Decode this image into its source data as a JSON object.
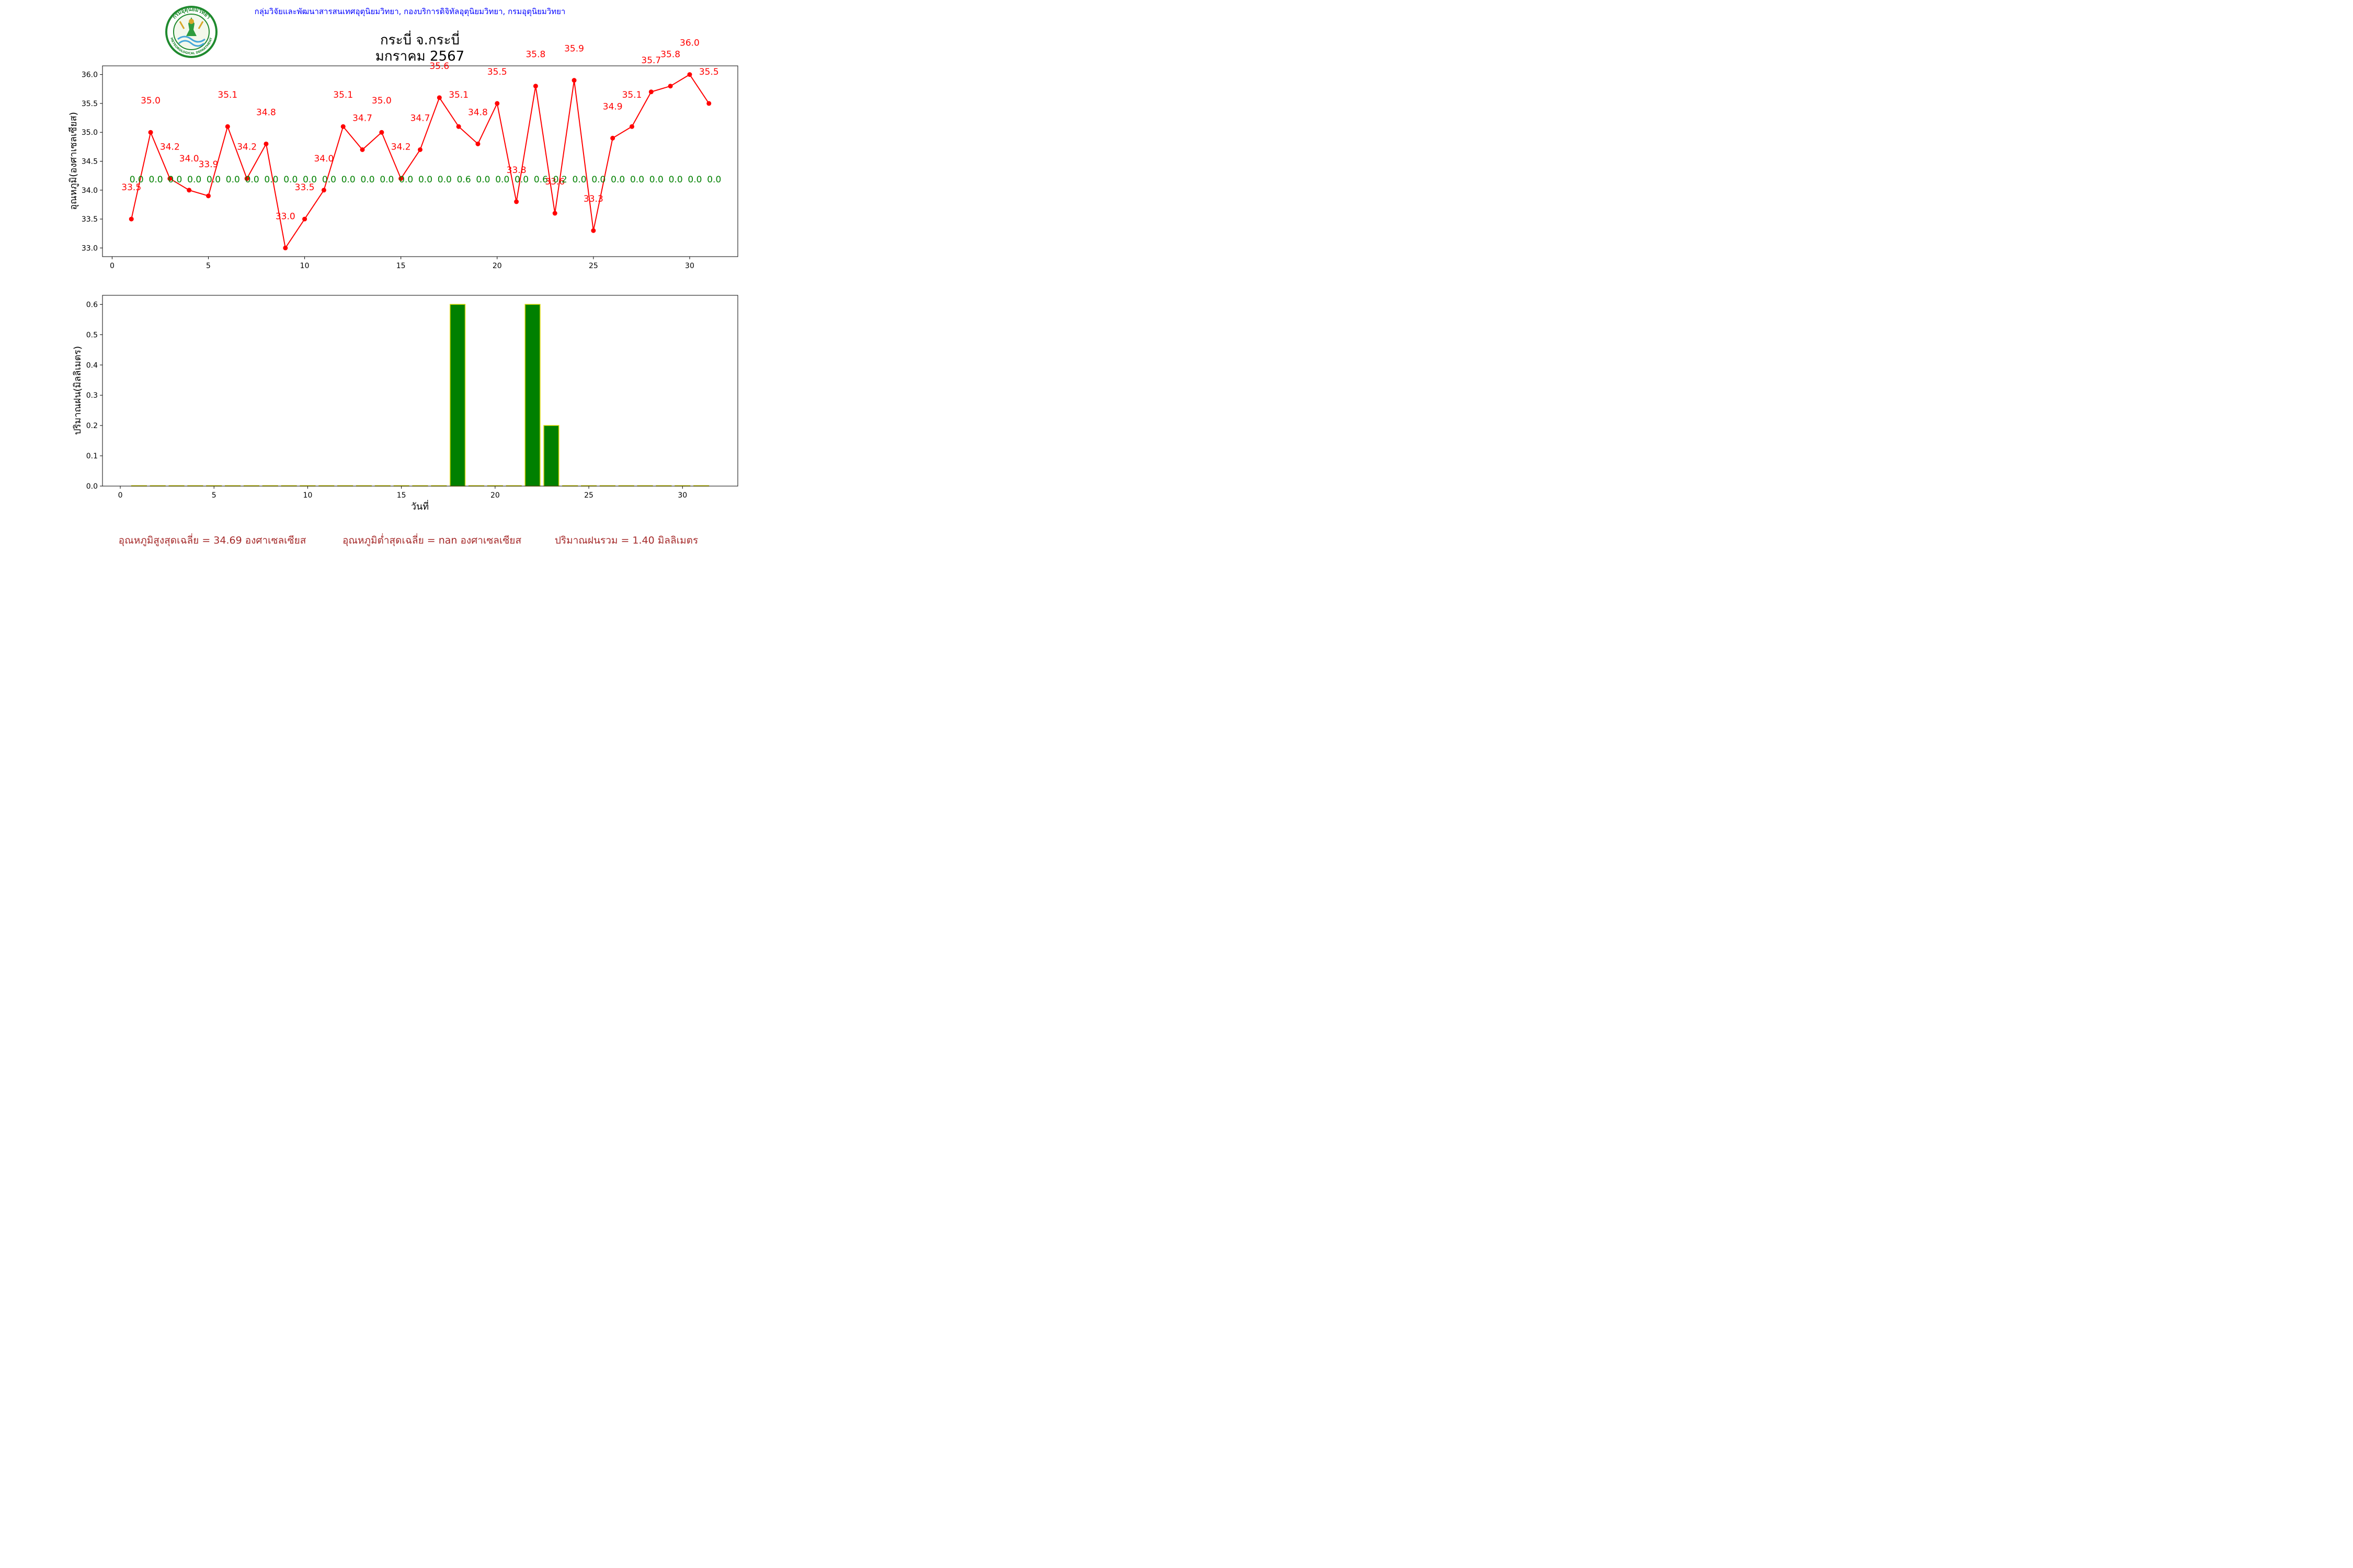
{
  "header": {
    "org_line": "กลุ่มวิจัยและพัฒนาสารสนเทศอุตุนิยมวิทยา, กองบริการดิจิทัลอุตุนิยมวิทยา, กรมอุตุนิยมวิทยา",
    "logo_text_top": "กรมอุตุนิยมวิทยา",
    "logo_text_bottom": "METEOROLOGICAL DEPARTMENT",
    "title_line1": "กระบี่ จ.กระบี่",
    "title_line2": "มกราคม 2567"
  },
  "colors": {
    "temperature": "#ff0000",
    "rain_label": "#008000",
    "bar_fill": "#008000",
    "bar_edge": "#d4d400",
    "header_text": "#0000ff",
    "footer_text": "#a52a2a"
  },
  "chart_data": [
    {
      "type": "line",
      "ylabel": "อุณหภูมิ(องศาเซลเซียส)",
      "x": [
        1,
        2,
        3,
        4,
        5,
        6,
        7,
        8,
        9,
        10,
        11,
        12,
        13,
        14,
        15,
        16,
        17,
        18,
        19,
        20,
        21,
        22,
        23,
        24,
        25,
        26,
        27,
        28,
        29,
        30,
        31
      ],
      "values": [
        33.5,
        35.0,
        34.2,
        34.0,
        33.9,
        35.1,
        34.2,
        34.8,
        33.0,
        33.5,
        34.0,
        35.1,
        34.7,
        35.0,
        34.2,
        34.7,
        35.6,
        35.1,
        34.8,
        35.5,
        33.8,
        35.8,
        33.6,
        35.9,
        33.3,
        34.9,
        35.1,
        35.7,
        35.8,
        36.0,
        35.5
      ],
      "value_labels": [
        "33.5",
        "35.0",
        "34.2",
        "34.0",
        "33.9",
        "35.1",
        "34.2",
        "34.8",
        "33.0",
        "33.5",
        "34.0",
        "35.1",
        "34.7",
        "35.0",
        "34.2",
        "34.7",
        "35.6",
        "35.1",
        "34.8",
        "35.5",
        "33.8",
        "35.8",
        "33.6",
        "35.9",
        "33.3",
        "34.9",
        "35.1",
        "35.7",
        "35.8",
        "36.0",
        "35.5"
      ],
      "rain_labels": [
        "0.0",
        "0.0",
        "0.0",
        "0.0",
        "0.0",
        "0.0",
        "0.0",
        "0.0",
        "0.0",
        "0.0",
        "0.0",
        "0.0",
        "0.0",
        "0.0",
        "0.0",
        "0.0",
        "0.0",
        "0.6",
        "0.0",
        "0.0",
        "0.0",
        "0.6",
        "0.2",
        "0.0",
        "0.0",
        "0.0",
        "0.0",
        "0.0",
        "0.0",
        "0.0",
        "0.0"
      ],
      "xlim": [
        -0.5,
        32.5
      ],
      "ylim": [
        32.85,
        36.15
      ],
      "xticks": [
        "0",
        "5",
        "10",
        "15",
        "20",
        "25",
        "30"
      ],
      "yticks": [
        "33.0",
        "33.5",
        "34.0",
        "34.5",
        "35.0",
        "35.5",
        "36.0"
      ]
    },
    {
      "type": "bar",
      "xlabel": "วันที่",
      "ylabel": "ปริมาณฝน(มิลลิเมตร)",
      "x": [
        1,
        2,
        3,
        4,
        5,
        6,
        7,
        8,
        9,
        10,
        11,
        12,
        13,
        14,
        15,
        16,
        17,
        18,
        19,
        20,
        21,
        22,
        23,
        24,
        25,
        26,
        27,
        28,
        29,
        30,
        31
      ],
      "values": [
        0,
        0,
        0,
        0,
        0,
        0,
        0,
        0,
        0,
        0,
        0,
        0,
        0,
        0,
        0,
        0,
        0,
        0.6,
        0,
        0,
        0,
        0.6,
        0.2,
        0,
        0,
        0,
        0,
        0,
        0,
        0,
        0
      ],
      "xlim": [
        -0.95,
        32.95
      ],
      "ylim": [
        0,
        0.63
      ],
      "xticks": [
        "0",
        "5",
        "10",
        "15",
        "20",
        "25",
        "30"
      ],
      "yticks": [
        "0.0",
        "0.1",
        "0.2",
        "0.3",
        "0.4",
        "0.5",
        "0.6"
      ]
    }
  ],
  "footer": {
    "avg_max": "อุณหภูมิสูงสุดเฉลี่ย = 34.69 องศาเซลเซียส",
    "avg_min": "อุณหภูมิต่ำสุดเฉลี่ย = nan องศาเซลเซียส",
    "total_rain": "ปริมาณฝนรวม = 1.40 มิลลิเมตร"
  }
}
